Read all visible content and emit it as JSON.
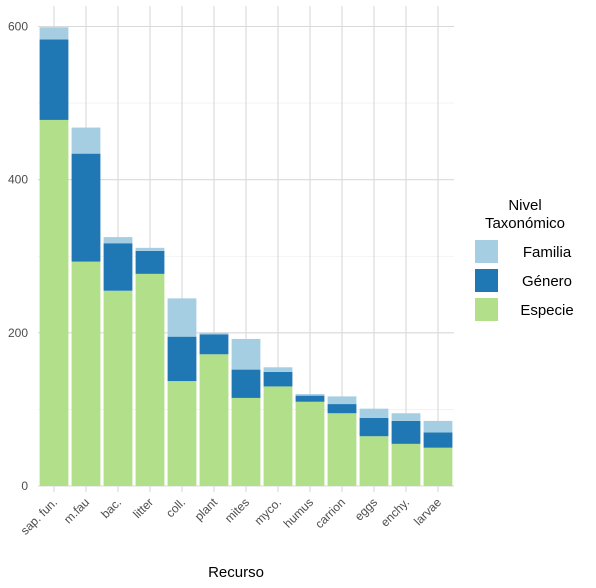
{
  "chart_data": {
    "type": "bar",
    "stacked": true,
    "title": "",
    "xlabel": "Recurso",
    "ylabel": "",
    "ylim": [
      0,
      610
    ],
    "yticks": [
      0,
      200,
      400,
      600
    ],
    "grid": true,
    "legend_position": "right",
    "legend_title": [
      "Nivel",
      "Taxonómico"
    ],
    "categories": [
      "sap. fun.",
      "m.fau",
      "bac.",
      "litter",
      "coll.",
      "plant",
      "mites",
      "myco.",
      "humus",
      "carrion",
      "eggs",
      "enchy.",
      "larvae"
    ],
    "series": [
      {
        "name": "Especie",
        "color": "#b2df8a",
        "values": [
          478,
          293,
          255,
          277,
          137,
          172,
          115,
          130,
          110,
          95,
          65,
          55,
          50
        ]
      },
      {
        "name": "Género",
        "color": "#1f78b4",
        "values": [
          105,
          141,
          62,
          30,
          58,
          26,
          37,
          19,
          8,
          12,
          24,
          30,
          20
        ]
      },
      {
        "name": "Familia",
        "color": "#a6cee3",
        "values": [
          16,
          34,
          8,
          4,
          50,
          2,
          40,
          6,
          2,
          10,
          12,
          10,
          15
        ]
      }
    ],
    "legend_order": [
      "Familia",
      "Género",
      "Especie"
    ]
  }
}
